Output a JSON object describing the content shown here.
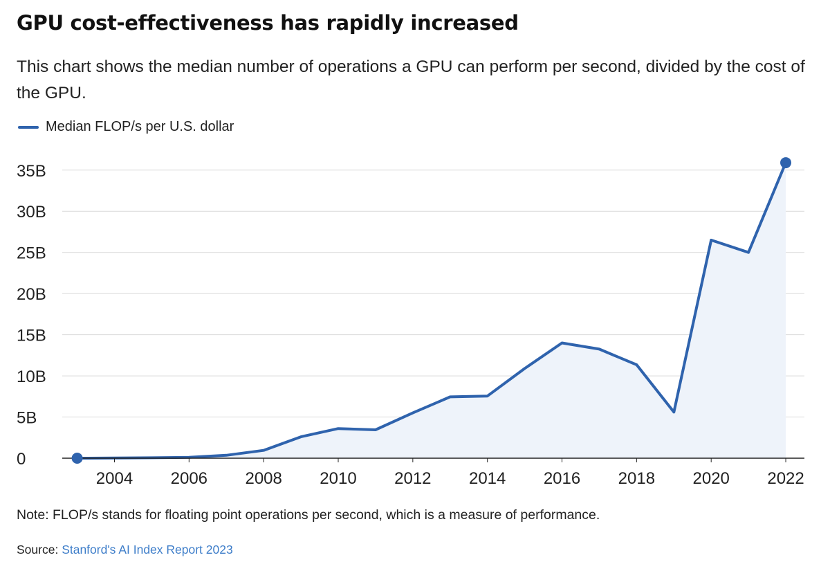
{
  "header": {
    "title": "GPU cost-effectiveness has rapidly increased",
    "subtitle": "This chart shows the median number of operations a GPU can perform per second, divided by the cost of the GPU."
  },
  "legend": {
    "label": "Median FLOP/s per U.S. dollar"
  },
  "footer": {
    "note": "Note: FLOP/s stands for floating point operations per second, which is a measure of performance.",
    "source_prefix": "Source: ",
    "source_link": "Stanford's AI Index Report 2023"
  },
  "colors": {
    "line": "#2f63ad",
    "area": "#eef3fa",
    "grid": "#d9d9d9",
    "axis": "#222222"
  },
  "chart_data": {
    "type": "area",
    "title": "GPU cost-effectiveness has rapidly increased",
    "xlabel": "",
    "ylabel": "",
    "series": [
      {
        "name": "Median FLOP/s per U.S. dollar",
        "x": [
          2003,
          2004,
          2005,
          2006,
          2007,
          2008,
          2009,
          2010,
          2011,
          2012,
          2013,
          2014,
          2015,
          2016,
          2017,
          2018,
          2019,
          2020,
          2021,
          2022
        ],
        "values": [
          0,
          0.02,
          0.05,
          0.1,
          0.35,
          0.95,
          2.6,
          3.6,
          3.45,
          5.5,
          7.45,
          7.55,
          10.9,
          14.0,
          13.25,
          11.35,
          5.6,
          26.5,
          25.0,
          35.9
        ]
      }
    ],
    "xlim": [
      2002.6,
      2022.5
    ],
    "ylim": [
      0,
      37
    ],
    "x_ticks": [
      2004,
      2006,
      2008,
      2010,
      2012,
      2014,
      2016,
      2018,
      2020,
      2022
    ],
    "x_tick_labels": [
      "2004",
      "2006",
      "2008",
      "2010",
      "2012",
      "2014",
      "2016",
      "2018",
      "2020",
      "2022"
    ],
    "y_ticks": [
      0,
      5,
      10,
      15,
      20,
      25,
      30,
      35
    ],
    "y_tick_labels": [
      "0",
      "5B",
      "10B",
      "15B",
      "20B",
      "25B",
      "30B",
      "35B"
    ],
    "units": "billions",
    "grid": true,
    "legend_position": "top-left",
    "endpoint_markers": true
  }
}
